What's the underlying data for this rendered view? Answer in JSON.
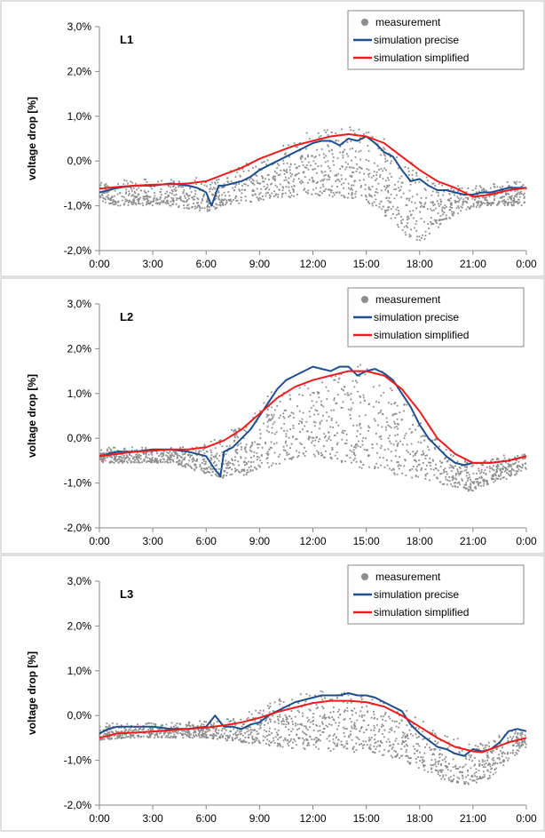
{
  "chart_data": [
    {
      "type": "scatter",
      "panel_label": "L1",
      "ylabel": "voltage drop [%]",
      "xlabel": "",
      "x_unit": "hours of day",
      "ylim": [
        -2.0,
        3.0
      ],
      "yticks": [
        "-2,0%",
        "-1,0%",
        "0,0%",
        "1,0%",
        "2,0%",
        "3,0%"
      ],
      "xticks": [
        "0:00",
        "3:00",
        "6:00",
        "9:00",
        "12:00",
        "15:00",
        "18:00",
        "21:00",
        "0:00"
      ],
      "grid": false,
      "legend_position": "top-right",
      "legend": [
        "measurement",
        "simulation precise",
        "simulation simplified"
      ],
      "colors": {
        "measurement": "#8c8c8c",
        "precise": "#1f4e8c",
        "simplified": "#ee1c1c"
      },
      "series": [
        {
          "name": "simulation precise",
          "x": [
            0,
            1,
            2,
            3,
            4,
            5,
            5.5,
            6,
            6.3,
            6.7,
            7,
            7.5,
            8,
            8.5,
            9,
            9.5,
            10,
            10.5,
            11,
            11.5,
            12,
            12.5,
            13,
            13.5,
            14,
            14.5,
            15,
            15.5,
            16,
            16.5,
            17,
            17.5,
            18,
            18.5,
            19,
            19.5,
            20,
            20.5,
            21,
            21.5,
            22,
            22.5,
            23,
            23.5,
            24
          ],
          "y": [
            -0.7,
            -0.6,
            -0.55,
            -0.55,
            -0.5,
            -0.55,
            -0.6,
            -0.7,
            -1.0,
            -0.55,
            -0.55,
            -0.5,
            -0.45,
            -0.35,
            -0.2,
            -0.1,
            0.0,
            0.1,
            0.2,
            0.3,
            0.4,
            0.45,
            0.45,
            0.35,
            0.5,
            0.45,
            0.55,
            0.4,
            0.2,
            0.1,
            -0.2,
            -0.45,
            -0.4,
            -0.55,
            -0.65,
            -0.65,
            -0.7,
            -0.75,
            -0.75,
            -0.7,
            -0.7,
            -0.65,
            -0.6,
            -0.6,
            -0.6
          ]
        },
        {
          "name": "simulation simplified",
          "x": [
            0,
            1,
            2,
            3,
            4,
            5,
            6,
            7,
            8,
            9,
            10,
            11,
            12,
            13,
            14,
            15,
            16,
            17,
            18,
            19,
            20,
            21,
            22,
            23,
            24
          ],
          "y": [
            -0.62,
            -0.58,
            -0.55,
            -0.53,
            -0.52,
            -0.5,
            -0.45,
            -0.3,
            -0.15,
            0.05,
            0.2,
            0.35,
            0.45,
            0.55,
            0.6,
            0.55,
            0.4,
            0.1,
            -0.2,
            -0.45,
            -0.6,
            -0.8,
            -0.75,
            -0.65,
            -0.6
          ]
        }
      ],
      "measurement_band": {
        "x": [
          0,
          2,
          4,
          6,
          7,
          8,
          9,
          10,
          11,
          12,
          13,
          14,
          15,
          16,
          17,
          18,
          19,
          20,
          21,
          22,
          23,
          24
        ],
        "upper": [
          -0.45,
          -0.4,
          -0.4,
          -0.35,
          -0.25,
          -0.1,
          0.2,
          0.4,
          0.55,
          0.7,
          0.75,
          0.8,
          0.7,
          0.55,
          0.2,
          -0.2,
          -0.4,
          -0.5,
          -0.55,
          -0.5,
          -0.45,
          -0.45
        ],
        "lower": [
          -1.0,
          -1.0,
          -1.0,
          -1.15,
          -1.0,
          -0.95,
          -0.9,
          -0.85,
          -0.8,
          -0.75,
          -0.8,
          -0.85,
          -0.9,
          -1.2,
          -1.6,
          -1.85,
          -1.5,
          -1.2,
          -1.05,
          -1.0,
          -1.0,
          -1.0
        ]
      }
    },
    {
      "type": "scatter",
      "panel_label": "L2",
      "ylabel": "voltage drop [%]",
      "xlabel": "",
      "x_unit": "hours of day",
      "ylim": [
        -2.0,
        3.0
      ],
      "yticks": [
        "-2,0%",
        "-1,0%",
        "0,0%",
        "1,0%",
        "2,0%",
        "3,0%"
      ],
      "xticks": [
        "0:00",
        "3:00",
        "6:00",
        "9:00",
        "12:00",
        "15:00",
        "18:00",
        "21:00",
        "0:00"
      ],
      "grid": false,
      "legend_position": "top-right",
      "legend": [
        "measurement",
        "simulation precise",
        "simulation simplified"
      ],
      "colors": {
        "measurement": "#8c8c8c",
        "precise": "#1f4e8c",
        "simplified": "#ee1c1c"
      },
      "series": [
        {
          "name": "simulation precise",
          "x": [
            0,
            1,
            2,
            3,
            4,
            5,
            5.5,
            6,
            6.5,
            6.8,
            7,
            7.5,
            8,
            8.5,
            9,
            9.5,
            10,
            10.5,
            11,
            11.5,
            12,
            12.5,
            13,
            13.5,
            14,
            14.5,
            15,
            15.5,
            16,
            16.5,
            17,
            17.5,
            18,
            18.5,
            19,
            19.5,
            20,
            20.5,
            21,
            22,
            23,
            24
          ],
          "y": [
            -0.4,
            -0.3,
            -0.3,
            -0.25,
            -0.25,
            -0.3,
            -0.35,
            -0.4,
            -0.7,
            -0.85,
            -0.3,
            -0.2,
            0.0,
            0.2,
            0.5,
            0.8,
            1.1,
            1.3,
            1.4,
            1.5,
            1.6,
            1.55,
            1.5,
            1.6,
            1.6,
            1.4,
            1.5,
            1.55,
            1.45,
            1.3,
            1.0,
            0.7,
            0.3,
            0.0,
            -0.2,
            -0.4,
            -0.55,
            -0.6,
            -0.55,
            -0.55,
            -0.5,
            -0.4
          ]
        },
        {
          "name": "simulation simplified",
          "x": [
            0,
            1,
            2,
            3,
            4,
            5,
            6,
            7,
            8,
            9,
            10,
            11,
            12,
            13,
            14,
            15,
            16,
            17,
            18,
            19,
            20,
            21,
            22,
            23,
            24
          ],
          "y": [
            -0.4,
            -0.35,
            -0.3,
            -0.28,
            -0.25,
            -0.25,
            -0.2,
            -0.05,
            0.2,
            0.55,
            0.9,
            1.15,
            1.3,
            1.4,
            1.5,
            1.5,
            1.4,
            1.1,
            0.6,
            0.0,
            -0.35,
            -0.55,
            -0.55,
            -0.5,
            -0.4
          ]
        }
      ],
      "measurement_band": {
        "x": [
          0,
          2,
          4,
          6,
          7,
          8,
          9,
          10,
          11,
          12,
          13,
          14,
          15,
          16,
          17,
          18,
          19,
          20,
          21,
          22,
          23,
          24
        ],
        "upper": [
          -0.2,
          -0.2,
          -0.2,
          -0.1,
          0.1,
          0.4,
          0.8,
          1.2,
          1.35,
          1.45,
          1.6,
          1.7,
          1.65,
          1.55,
          1.2,
          0.7,
          0.1,
          -0.3,
          -0.45,
          -0.4,
          -0.35,
          -0.3
        ],
        "lower": [
          -0.55,
          -0.55,
          -0.55,
          -0.8,
          -0.9,
          -0.85,
          -0.7,
          -0.6,
          -0.5,
          -0.4,
          -0.45,
          -0.6,
          -0.7,
          -0.8,
          -0.85,
          -0.9,
          -1.0,
          -1.1,
          -1.2,
          -1.0,
          -0.9,
          -0.7
        ]
      }
    },
    {
      "type": "scatter",
      "panel_label": "L3",
      "ylabel": "voltage drop [%]",
      "xlabel": "",
      "x_unit": "hours of day",
      "ylim": [
        -2.0,
        3.0
      ],
      "yticks": [
        "-2,0%",
        "-1,0%",
        "0,0%",
        "1,0%",
        "2,0%",
        "3,0%"
      ],
      "xticks": [
        "0:00",
        "3:00",
        "6:00",
        "9:00",
        "12:00",
        "15:00",
        "18:00",
        "21:00",
        "0:00"
      ],
      "grid": false,
      "legend_position": "top-right",
      "legend": [
        "measurement",
        "simulation precise",
        "simulation simplified"
      ],
      "colors": {
        "measurement": "#8c8c8c",
        "precise": "#1f4e8c",
        "simplified": "#ee1c1c"
      },
      "series": [
        {
          "name": "simulation precise",
          "x": [
            0,
            0.5,
            1,
            2,
            3,
            4,
            5,
            6,
            6.5,
            7,
            7.5,
            8,
            8.5,
            9,
            9.5,
            10,
            10.5,
            11,
            11.5,
            12,
            12.5,
            13,
            13.5,
            14,
            14.5,
            15,
            15.5,
            16,
            16.5,
            17,
            17.5,
            18,
            18.5,
            19,
            19.5,
            20,
            20.5,
            21,
            21.5,
            22,
            22.5,
            23,
            23.5,
            24
          ],
          "y": [
            -0.4,
            -0.3,
            -0.25,
            -0.25,
            -0.25,
            -0.3,
            -0.3,
            -0.25,
            0.0,
            -0.25,
            -0.25,
            -0.3,
            -0.2,
            -0.15,
            0.0,
            0.1,
            0.2,
            0.3,
            0.35,
            0.4,
            0.45,
            0.45,
            0.45,
            0.5,
            0.45,
            0.45,
            0.4,
            0.3,
            0.2,
            0.1,
            -0.2,
            -0.4,
            -0.55,
            -0.7,
            -0.75,
            -0.85,
            -0.9,
            -0.75,
            -0.8,
            -0.75,
            -0.6,
            -0.35,
            -0.3,
            -0.35
          ]
        },
        {
          "name": "simulation simplified",
          "x": [
            0,
            1,
            2,
            3,
            4,
            5,
            6,
            7,
            8,
            9,
            10,
            11,
            12,
            13,
            14,
            15,
            16,
            17,
            18,
            19,
            20,
            21,
            21.5,
            22,
            23,
            24
          ],
          "y": [
            -0.5,
            -0.4,
            -0.38,
            -0.36,
            -0.33,
            -0.3,
            -0.27,
            -0.22,
            -0.15,
            -0.05,
            0.08,
            0.18,
            0.28,
            0.33,
            0.33,
            0.3,
            0.2,
            0.0,
            -0.25,
            -0.5,
            -0.7,
            -0.8,
            -0.82,
            -0.75,
            -0.6,
            -0.5
          ]
        }
      ],
      "measurement_band": {
        "x": [
          0,
          2,
          4,
          6,
          7,
          8,
          9,
          10,
          11,
          12,
          13,
          14,
          15,
          16,
          17,
          18,
          19,
          20,
          21,
          22,
          23,
          24
        ],
        "upper": [
          -0.15,
          -0.15,
          -0.15,
          -0.1,
          -0.05,
          0.05,
          0.25,
          0.4,
          0.55,
          0.6,
          0.6,
          0.55,
          0.5,
          0.4,
          0.2,
          -0.05,
          -0.3,
          -0.5,
          -0.6,
          -0.5,
          -0.3,
          -0.2
        ],
        "lower": [
          -0.55,
          -0.5,
          -0.5,
          -0.5,
          -0.55,
          -0.6,
          -0.65,
          -0.7,
          -0.75,
          -0.75,
          -0.8,
          -0.8,
          -0.85,
          -0.9,
          -1.0,
          -1.2,
          -1.4,
          -1.5,
          -1.55,
          -1.4,
          -1.0,
          -0.7
        ]
      }
    }
  ]
}
